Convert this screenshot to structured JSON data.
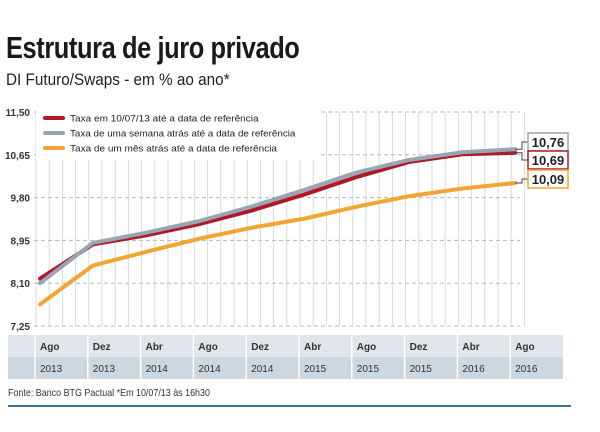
{
  "chart_data": {
    "type": "line",
    "title": "Estrutura de juro privado",
    "subtitle": "DI Futuro/Swaps - em % ao ano*",
    "x": [
      "2013-08",
      "2013-12",
      "2014-04",
      "2014-08",
      "2014-12",
      "2015-04",
      "2015-08",
      "2015-12",
      "2016-04",
      "2016-08"
    ],
    "x_tick_labels": [
      {
        "month": "Ago",
        "year": "2013"
      },
      {
        "month": "Dez",
        "year": "2013"
      },
      {
        "month": "Abr",
        "year": "2014"
      },
      {
        "month": "Ago",
        "year": "2014"
      },
      {
        "month": "Dez",
        "year": "2014"
      },
      {
        "month": "Abr",
        "year": "2015"
      },
      {
        "month": "Ago",
        "year": "2015"
      },
      {
        "month": "Dez",
        "year": "2015"
      },
      {
        "month": "Abr",
        "year": "2016"
      },
      {
        "month": "Ago",
        "year": "2016"
      }
    ],
    "y_ticks": [
      "11,50",
      "10,65",
      "9,80",
      "8,95",
      "8,10",
      "7,25"
    ],
    "ylim": [
      7.25,
      11.5
    ],
    "grid": {
      "horizontal_dashed": true,
      "vertical": true
    },
    "legend_placement": "top-left",
    "series": [
      {
        "name": "Taxa em 10/07/13 até a data de referência",
        "color": "#b0182a",
        "values": [
          8.19,
          8.87,
          9.05,
          9.27,
          9.54,
          9.86,
          10.21,
          10.51,
          10.66,
          10.69
        ],
        "end_label": "10,69"
      },
      {
        "name": "Taxa de uma semana atrás até a data de referência",
        "color": "#97a6b2",
        "values": [
          8.1,
          8.9,
          9.1,
          9.33,
          9.62,
          9.95,
          10.3,
          10.55,
          10.7,
          10.76
        ],
        "end_label": "10,76"
      },
      {
        "name": "Taxa de um mês atrás até a data de referência",
        "color": "#f2a531",
        "values": [
          7.68,
          8.45,
          8.72,
          8.98,
          9.2,
          9.38,
          9.62,
          9.83,
          9.98,
          10.09
        ],
        "end_label": "10,09"
      }
    ]
  },
  "footer": "Fonte: Banco BTG Pactual   *Em 10/07/13 às 16h30"
}
